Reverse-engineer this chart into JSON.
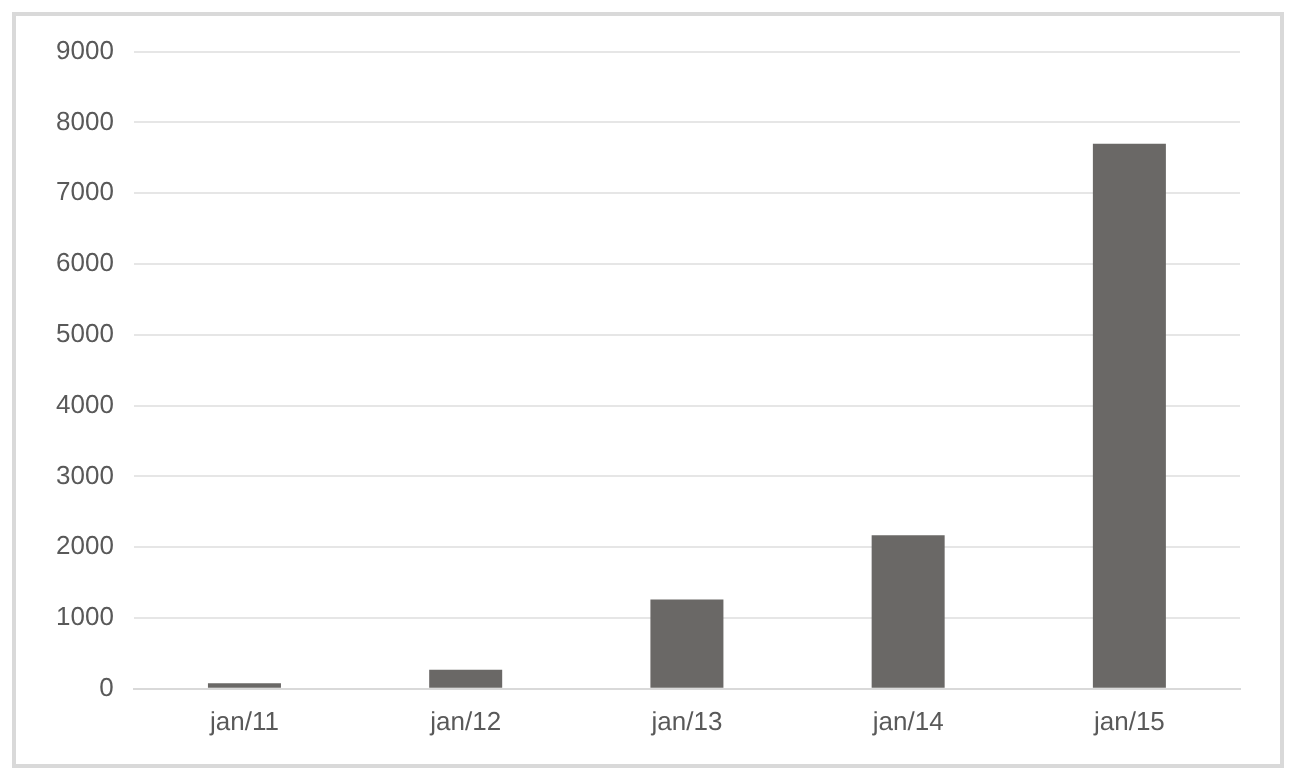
{
  "chart_data": {
    "type": "bar",
    "categories": [
      "jan/11",
      "jan/12",
      "jan/13",
      "jan/14",
      "jan/15"
    ],
    "values": [
      80,
      270,
      1260,
      2170,
      7700
    ],
    "color": "#6a6866",
    "ylim": [
      0,
      9000
    ],
    "yticks": [
      0,
      1000,
      2000,
      3000,
      4000,
      5000,
      6000,
      7000,
      8000,
      9000
    ],
    "grid": "y",
    "legend": false
  }
}
